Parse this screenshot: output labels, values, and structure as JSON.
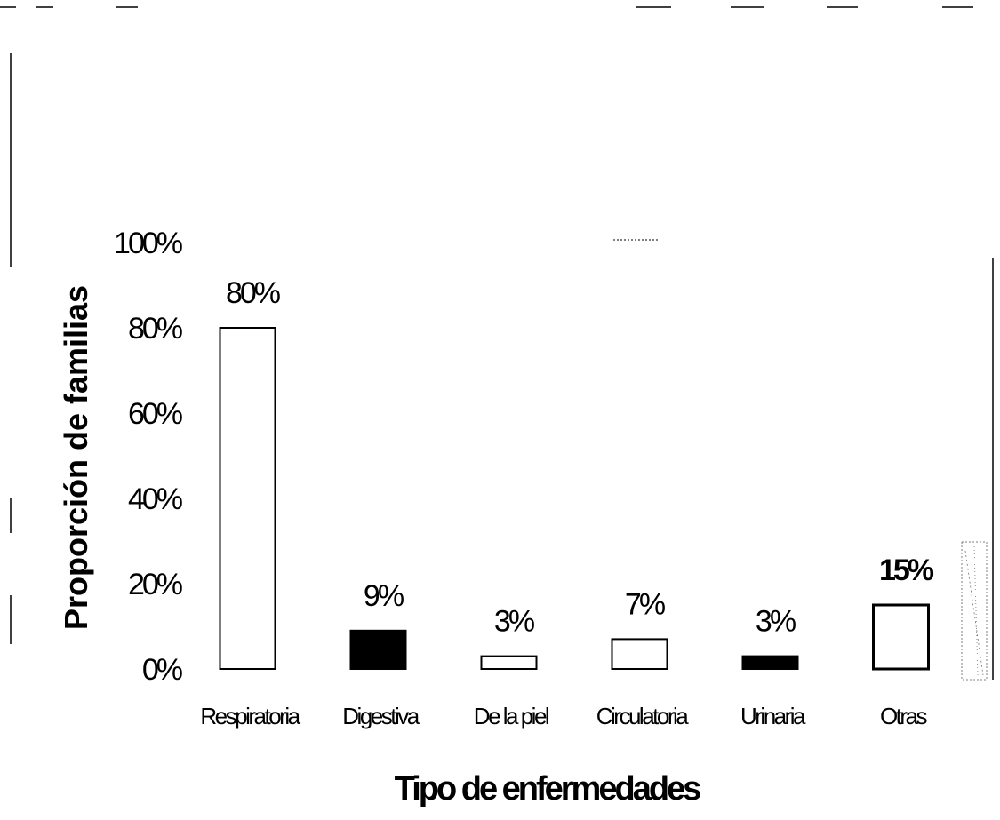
{
  "chart_data": {
    "type": "bar",
    "title": "",
    "xlabel": "Tipo de enfermedades",
    "ylabel": "Proporción de familias",
    "ylim": [
      0,
      100
    ],
    "yticks": [
      "0%",
      "20%",
      "40%",
      "60%",
      "80%",
      "100%"
    ],
    "grid": false,
    "categories": [
      "Respiratoria",
      "Digestiva",
      "De la piel",
      "Circulatoria",
      "Urinaria",
      "Otras"
    ],
    "values": [
      80,
      9,
      3,
      7,
      3,
      15
    ],
    "data_labels": [
      "80%",
      "9%",
      "3%",
      "7%",
      "3%",
      "15%"
    ],
    "bar_fills": [
      "#ffffff",
      "#000000",
      "#ffffff",
      "#ffffff",
      "#000000",
      "#ffffff"
    ]
  }
}
